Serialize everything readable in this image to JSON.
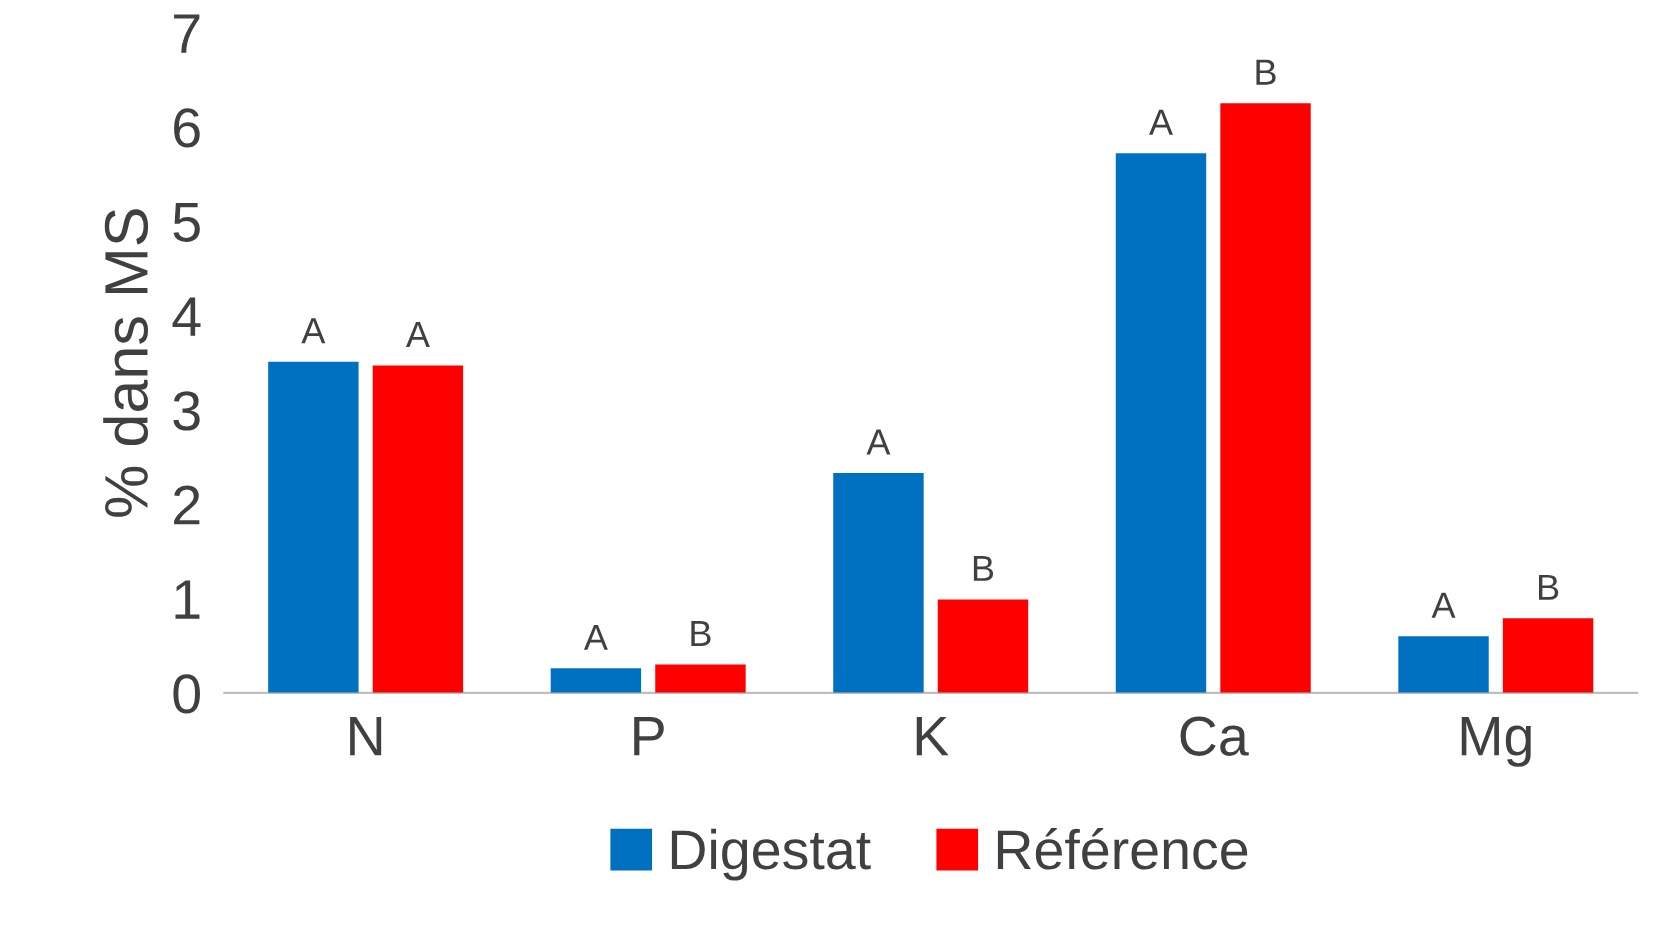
{
  "chart_data": {
    "type": "bar",
    "ylabel": "% dans MS",
    "categories": [
      "N",
      "P",
      "K",
      "Ca",
      "Mg"
    ],
    "series": [
      {
        "name": "Digestat",
        "color": "#0070c0",
        "values": [
          3.51,
          0.26,
          2.33,
          5.72,
          0.6
        ],
        "value_labels": [
          "A",
          "A",
          "A",
          "A",
          "A"
        ]
      },
      {
        "name": "Référence",
        "color": "#ff0000",
        "values": [
          3.47,
          0.3,
          0.99,
          6.25,
          0.79
        ],
        "value_labels": [
          "A",
          "B",
          "B",
          "B",
          "B"
        ]
      }
    ],
    "ylim": [
      0,
      7
    ],
    "yticks": [
      0,
      1,
      2,
      3,
      4,
      5,
      6,
      7
    ],
    "grid": false,
    "legend": "bottom"
  }
}
